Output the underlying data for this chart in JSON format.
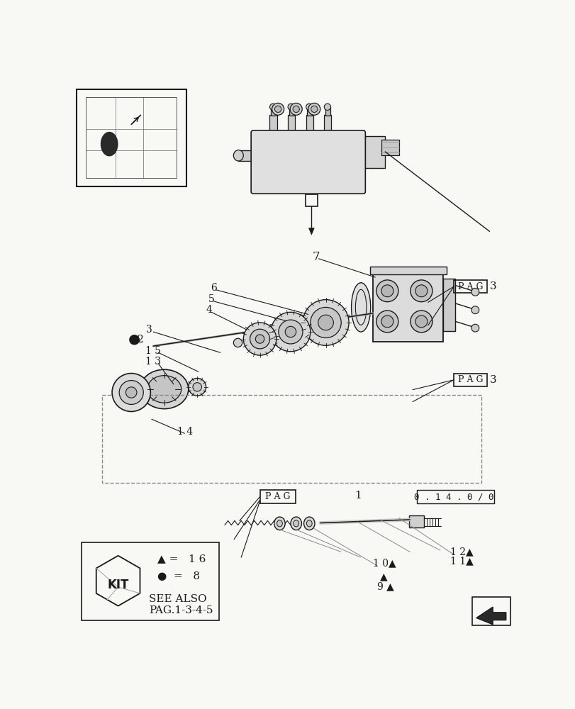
{
  "bg_color": "#f8f8f5",
  "line_color": "#1a1a1a",
  "page_ref_label": "0 . 1 4 . 0 / 0",
  "pag_label": "P A G",
  "kit_text": "KIT",
  "legend_triangle_text": "▲ =   1 6",
  "legend_circle_text": "●  =   8",
  "see_also_line1": "SEE ALSO",
  "see_also_line2": "PAG.1-3-4-5"
}
